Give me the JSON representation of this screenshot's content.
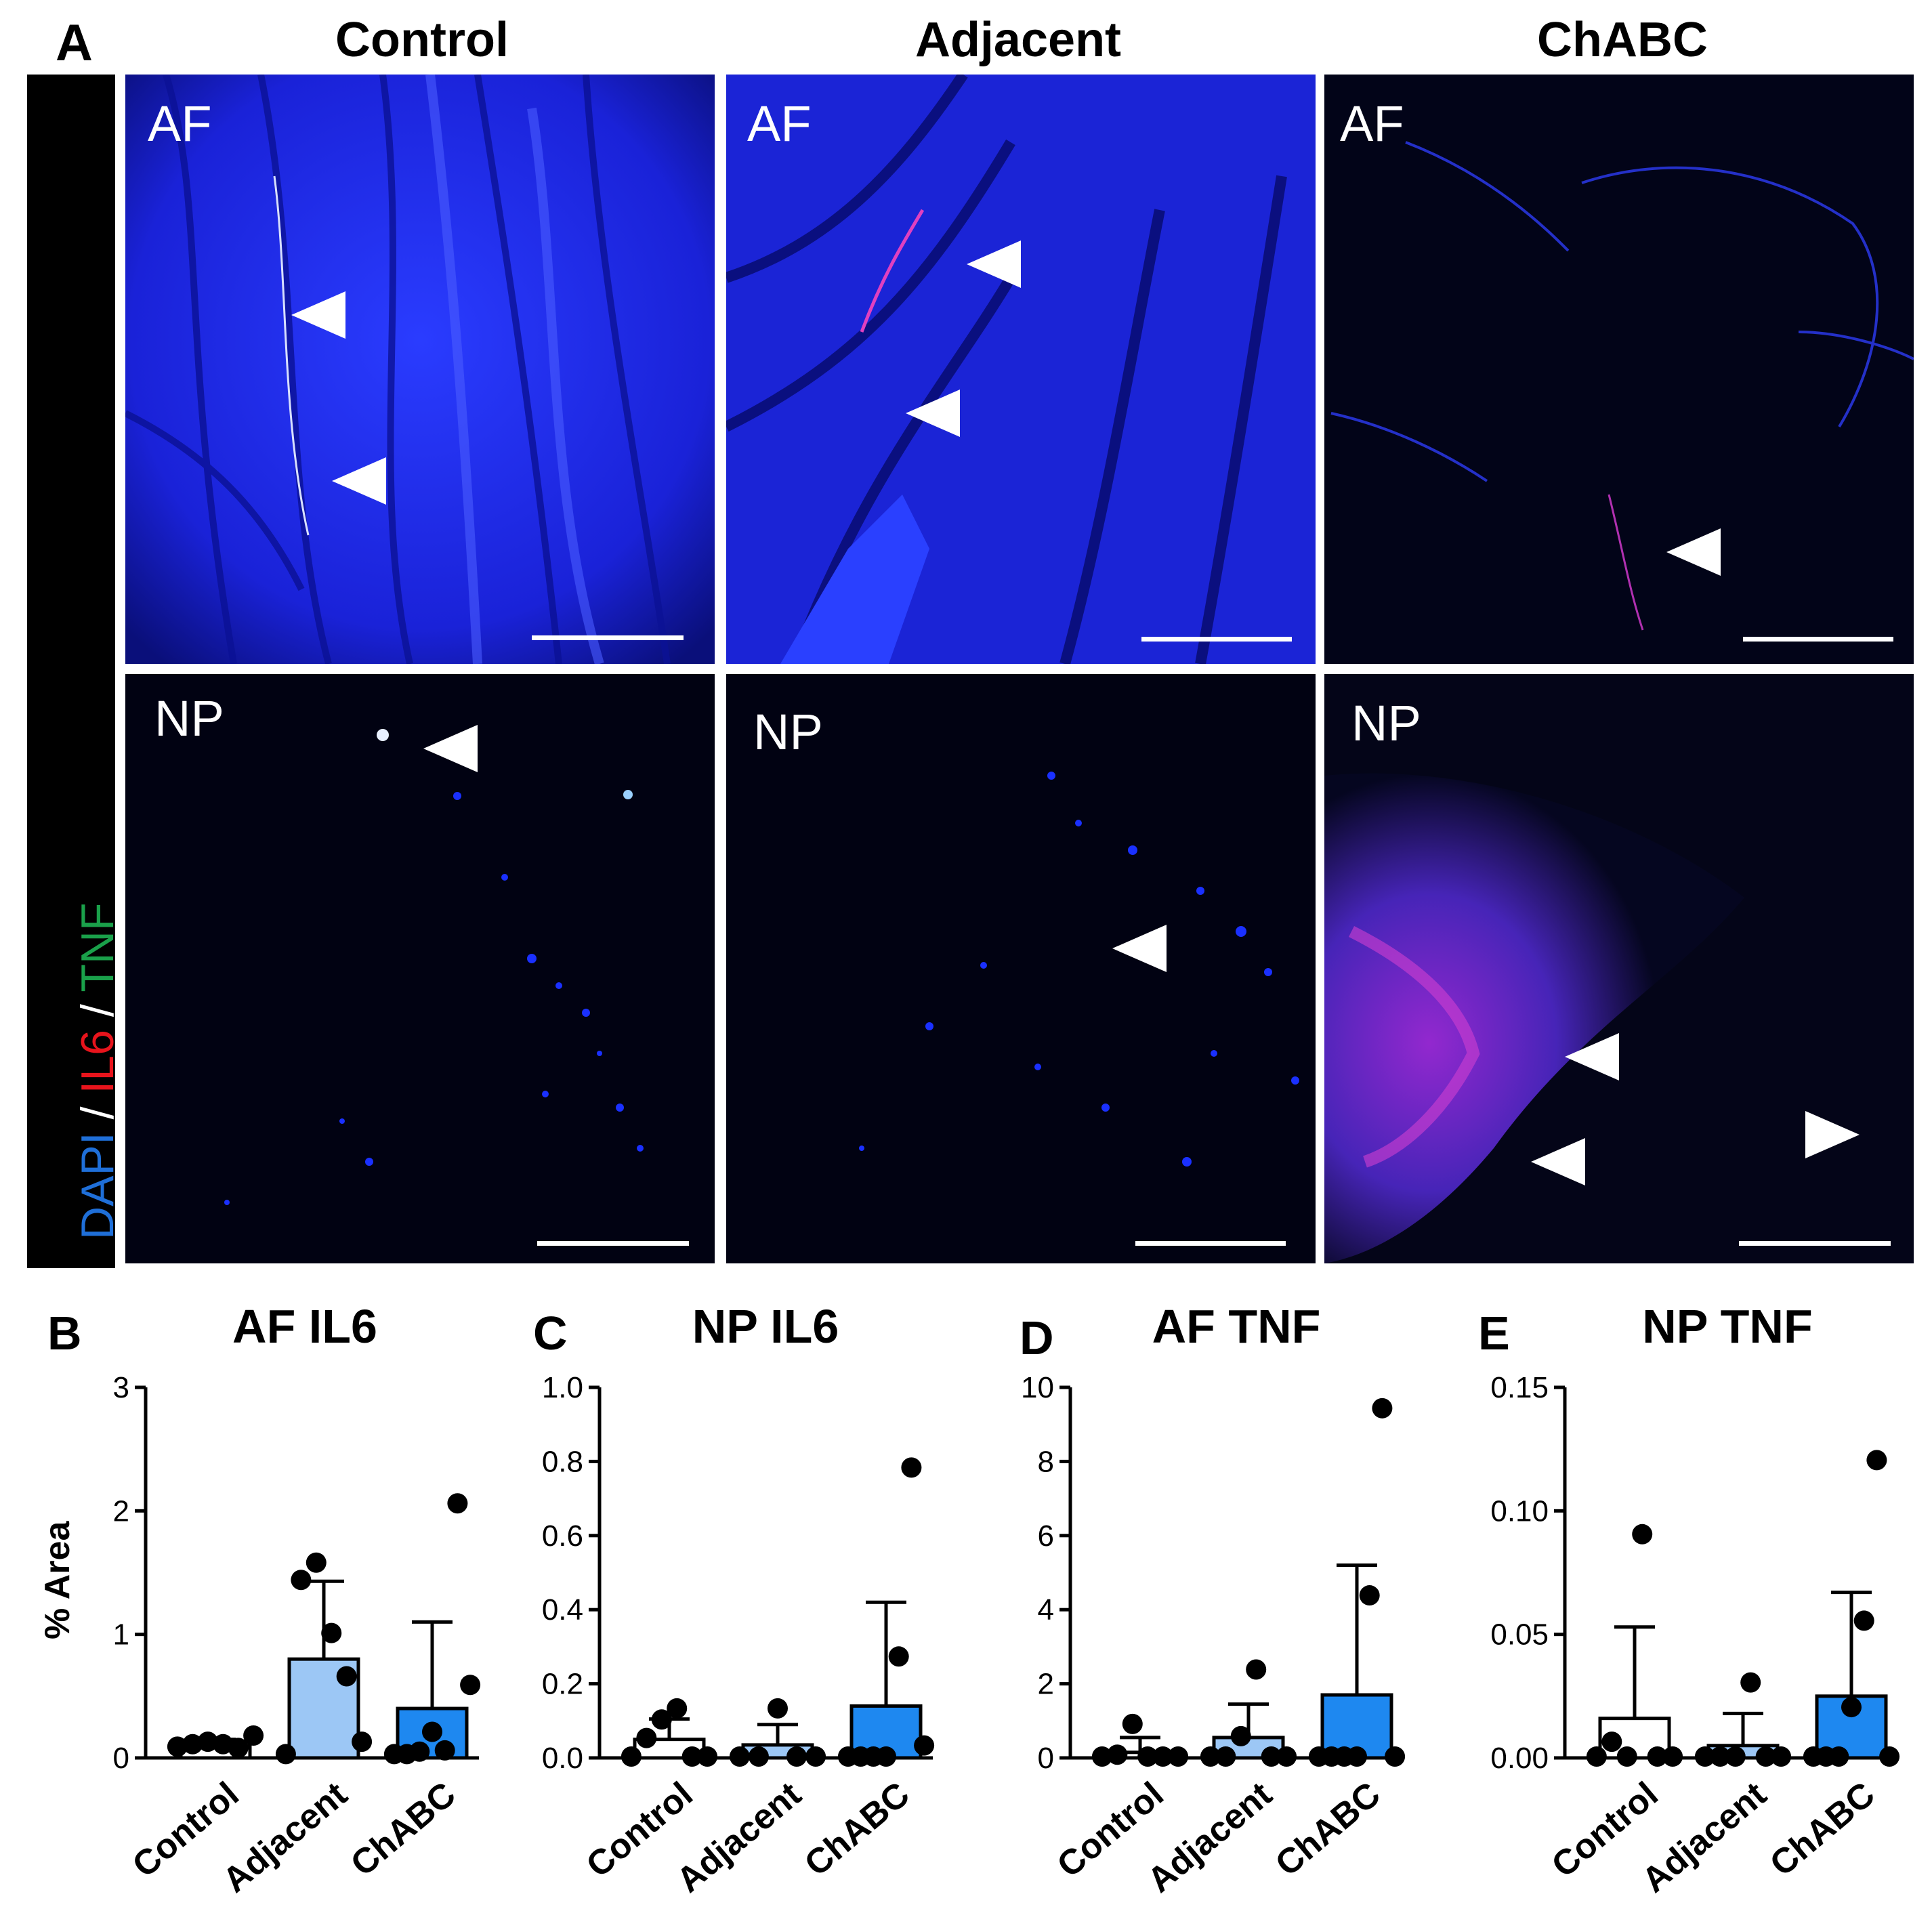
{
  "panel_a": {
    "letter": "A",
    "columns": [
      "Control",
      "Adjacent",
      "ChABC"
    ],
    "region_labels": [
      "AF",
      "NP"
    ],
    "stain_legend": [
      {
        "text": "DAPI",
        "color": "#1f6fd8"
      },
      {
        "text": " / ",
        "color": "#ffffff"
      },
      {
        "text": "IL6",
        "color": "#e8141c"
      },
      {
        "text": " / ",
        "color": "#ffffff"
      },
      {
        "text": "TNF",
        "color": "#1aa04a"
      }
    ]
  },
  "chart_data": [
    {
      "type": "bar",
      "letter": "B",
      "title": "AF IL6",
      "ylabel": "% Area",
      "categories": [
        "Control",
        "Adjacent",
        "ChABC"
      ],
      "ylim": [
        0,
        3
      ],
      "yticks": [
        "0",
        "1",
        "2",
        "3"
      ],
      "values": [
        0.1,
        0.8,
        0.4
      ],
      "error_upper": [
        0.15,
        1.43,
        1.1
      ],
      "points": [
        [
          0.08,
          0.1,
          0.12,
          0.1,
          0.07,
          0.17
        ],
        [
          0.02,
          1.43,
          1.57,
          1.0,
          0.65,
          0.12
        ],
        [
          0.02,
          0.02,
          0.04,
          0.2,
          0.05,
          2.05,
          0.58
        ]
      ],
      "bar_colors": [
        "#ffffff",
        "#9cc7f5",
        "#1e88f0"
      ]
    },
    {
      "type": "bar",
      "letter": "C",
      "title": "NP IL6",
      "ylabel": "",
      "categories": [
        "Control",
        "Adjacent",
        "ChABC"
      ],
      "ylim": [
        0,
        1.0
      ],
      "yticks": [
        "0.0",
        "0.2",
        "0.4",
        "0.6",
        "0.8",
        "1.0"
      ],
      "values": [
        0.05,
        0.035,
        0.14
      ],
      "error_upper": [
        0.105,
        0.09,
        0.42
      ],
      "points": [
        [
          0.0,
          0.05,
          0.1,
          0.13,
          0.0,
          0.0
        ],
        [
          0.0,
          0.0,
          0.13,
          0.0,
          0.0
        ],
        [
          0.0,
          0.0,
          0.0,
          0.0,
          0.27,
          0.78,
          0.03
        ]
      ],
      "bar_colors": [
        "#ffffff",
        "#9cc7f5",
        "#1e88f0"
      ]
    },
    {
      "type": "bar",
      "letter": "D",
      "title": "AF TNF",
      "ylabel": "",
      "categories": [
        "Control",
        "Adjacent",
        "ChABC"
      ],
      "ylim": [
        0,
        10
      ],
      "yticks": [
        "0",
        "2",
        "4",
        "6",
        "8",
        "10"
      ],
      "values": [
        0.15,
        0.55,
        1.7
      ],
      "error_upper": [
        0.55,
        1.45,
        5.2
      ],
      "points": [
        [
          0.0,
          0.05,
          0.88,
          0.0,
          0.0,
          0.0
        ],
        [
          0.0,
          0.0,
          0.55,
          2.35,
          0.0,
          0.0
        ],
        [
          0.0,
          0.0,
          0.0,
          0.0,
          4.35,
          9.4,
          0.0
        ]
      ],
      "bar_colors": [
        "#ffffff",
        "#9cc7f5",
        "#1e88f0"
      ]
    },
    {
      "type": "bar",
      "letter": "E",
      "title": "NP TNF",
      "ylabel": "",
      "categories": [
        "Control",
        "Adjacent",
        "ChABC"
      ],
      "ylim": [
        0,
        0.15
      ],
      "yticks": [
        "0.00",
        "0.05",
        "0.10",
        "0.15"
      ],
      "values": [
        0.016,
        0.005,
        0.025
      ],
      "error_upper": [
        0.053,
        0.018,
        0.067
      ],
      "points": [
        [
          0.0,
          0.006,
          0.0,
          0.09,
          0.0,
          0.0
        ],
        [
          0.0,
          0.0,
          0.0,
          0.03,
          0.0,
          0.0
        ],
        [
          0.0,
          0.0,
          0.0,
          0.02,
          0.055,
          0.12,
          0.0
        ]
      ],
      "bar_colors": [
        "#ffffff",
        "#9cc7f5",
        "#1e88f0"
      ]
    }
  ]
}
